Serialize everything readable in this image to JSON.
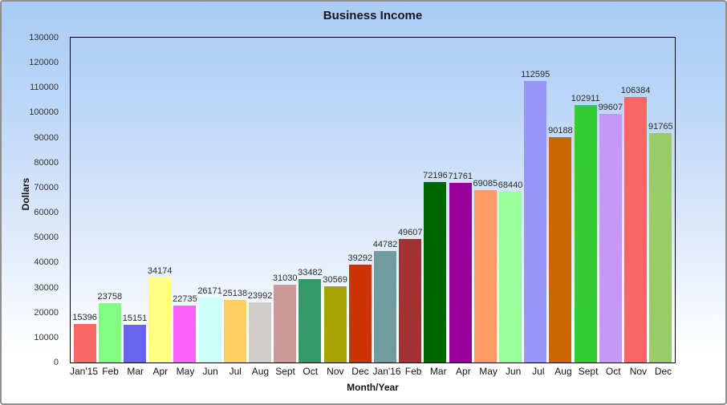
{
  "window": {
    "border_color": "#8F8F8F",
    "background_top": "#A9CBF5",
    "background_bottom": "#FFFFFF"
  },
  "chart_data": {
    "type": "bar",
    "title": "Business Income",
    "xlabel": "Month/Year",
    "ylabel": "Dollars",
    "ylim": [
      0,
      130000
    ],
    "y_ticks": [
      0,
      10000,
      20000,
      30000,
      40000,
      50000,
      60000,
      70000,
      80000,
      90000,
      100000,
      110000,
      120000,
      130000
    ],
    "grid": false,
    "legend": false,
    "value_labels_shown": true,
    "categories": [
      "Jan'15",
      "Feb",
      "Mar",
      "Apr",
      "May",
      "Jun",
      "Jul",
      "Aug",
      "Sept",
      "Oct",
      "Nov",
      "Dec",
      "Jan'16",
      "Feb",
      "Mar",
      "Apr",
      "May",
      "Jun",
      "Jul",
      "Aug",
      "Sept",
      "Oct",
      "Nov",
      "Dec"
    ],
    "values": [
      15396,
      23758,
      15151,
      34174,
      22735,
      26171,
      25138,
      23992,
      31030,
      33482,
      30569,
      39292,
      44782,
      49607,
      72196,
      71761,
      69085,
      68440,
      112595,
      90188,
      102911,
      99607,
      106384,
      91765
    ],
    "bar_colors": [
      "#FA6864",
      "#80FF80",
      "#6864F0",
      "#FFFF80",
      "#FB63FB",
      "#CCFFFA",
      "#FBCF63",
      "#D0CECC",
      "#CC9898",
      "#339966",
      "#A6A302",
      "#CC3305",
      "#6F9CA0",
      "#A33333",
      "#006600",
      "#990099",
      "#FF9966",
      "#99FF99",
      "#9897F8",
      "#CC6600",
      "#33CC33",
      "#C698F6",
      "#FA6666",
      "#99CC66"
    ],
    "colors": {
      "axis": "#000000",
      "tick_label": "#333333",
      "category_label": "#141414",
      "value_label": "#2B2B2B",
      "title": "#16161C"
    }
  }
}
